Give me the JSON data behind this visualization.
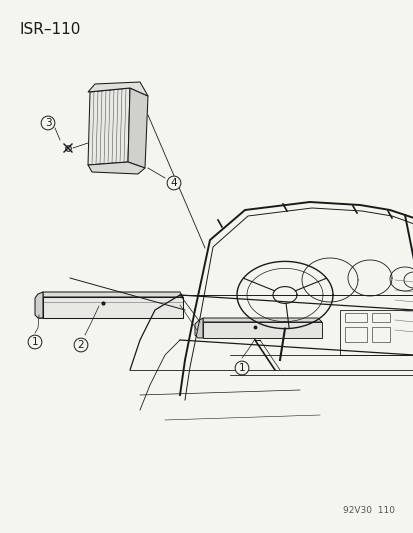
{
  "title": "ISR–110",
  "watermark": "92V30  110",
  "bg_color": "#f5f5f0",
  "text_color": "#1a1a1a",
  "line_color": "#1a1a1a",
  "title_fontsize": 11,
  "watermark_fontsize": 6.5,
  "callout_fontsize": 7.5,
  "lw": 0.75
}
